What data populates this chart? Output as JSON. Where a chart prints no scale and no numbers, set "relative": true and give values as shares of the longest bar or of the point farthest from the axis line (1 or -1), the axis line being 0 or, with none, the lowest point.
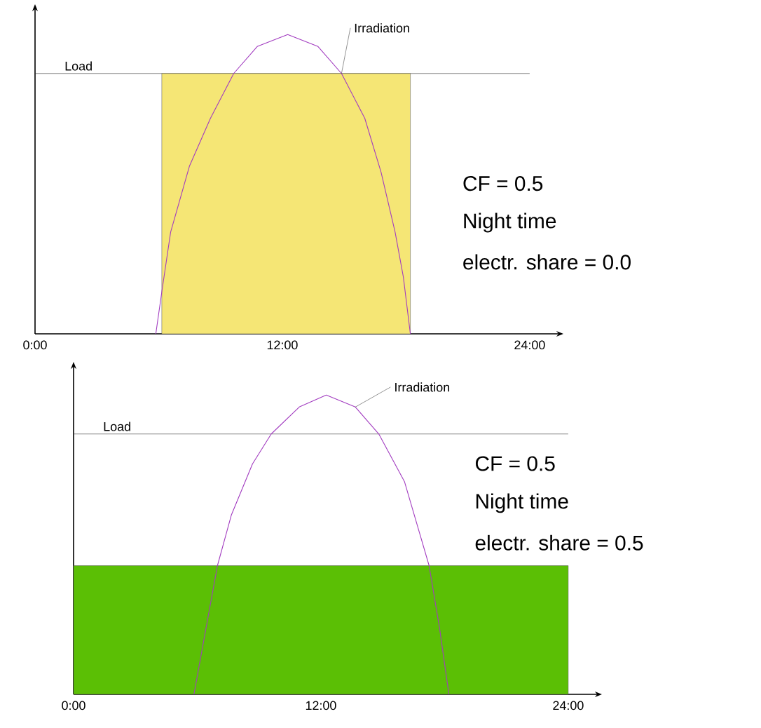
{
  "chart_data": [
    {
      "type": "line",
      "relative": true,
      "xlim": [
        0,
        25.5
      ],
      "xticks": [
        {
          "value": 0,
          "label": "0:00"
        },
        {
          "value": 12,
          "label": "12:00"
        },
        {
          "value": 24,
          "label": "24:00"
        }
      ],
      "series": [
        {
          "type": "area",
          "color": "#f5e675",
          "x": [
            6.15,
            18.21
          ],
          "values": [
            0.87,
            0.87
          ]
        },
        {
          "name": "Irradiation",
          "color": "#a23cc0",
          "x": [
            5.86,
            6.15,
            6.58,
            7.49,
            8.51,
            9.64,
            10.78,
            12.26,
            13.73,
            14.87,
            16.0,
            16.79,
            17.47,
            17.87,
            18.21
          ],
          "values": [
            0,
            0.14,
            0.34,
            0.56,
            0.72,
            0.87,
            0.96,
            1.0,
            0.96,
            0.87,
            0.72,
            0.54,
            0.34,
            0.19,
            0
          ]
        }
      ],
      "ref_lines": [
        {
          "axis": "y",
          "value": 0.87,
          "label": "Load"
        }
      ],
      "annotations": [
        "CF = 0.5",
        "Night time",
        "electr. share  = 0.0"
      ]
    },
    {
      "type": "line",
      "relative": true,
      "xlim": [
        0,
        25.5
      ],
      "xticks": [
        {
          "value": 0,
          "label": "0:00"
        },
        {
          "value": 12,
          "label": "12:00"
        },
        {
          "value": 24,
          "label": "24:00"
        }
      ],
      "series": [
        {
          "type": "area",
          "color": "#5bbf05",
          "x": [
            0,
            24
          ],
          "values": [
            0.43,
            0.43
          ]
        },
        {
          "name": "Irradiation",
          "color": "#a23cc0",
          "x": [
            5.84,
            6.98,
            7.66,
            8.68,
            9.59,
            10.95,
            12.26,
            13.67,
            14.81,
            16.06,
            17.25,
            17.76,
            18.21
          ],
          "values": [
            0,
            0.43,
            0.6,
            0.77,
            0.87,
            0.96,
            1.0,
            0.96,
            0.87,
            0.71,
            0.43,
            0.22,
            0
          ]
        }
      ],
      "ref_lines": [
        {
          "axis": "y",
          "value": 0.87,
          "label": "Load"
        }
      ],
      "annotations": [
        "CF = 0.5",
        "Night time",
        "electr. share = 0.5"
      ]
    }
  ]
}
